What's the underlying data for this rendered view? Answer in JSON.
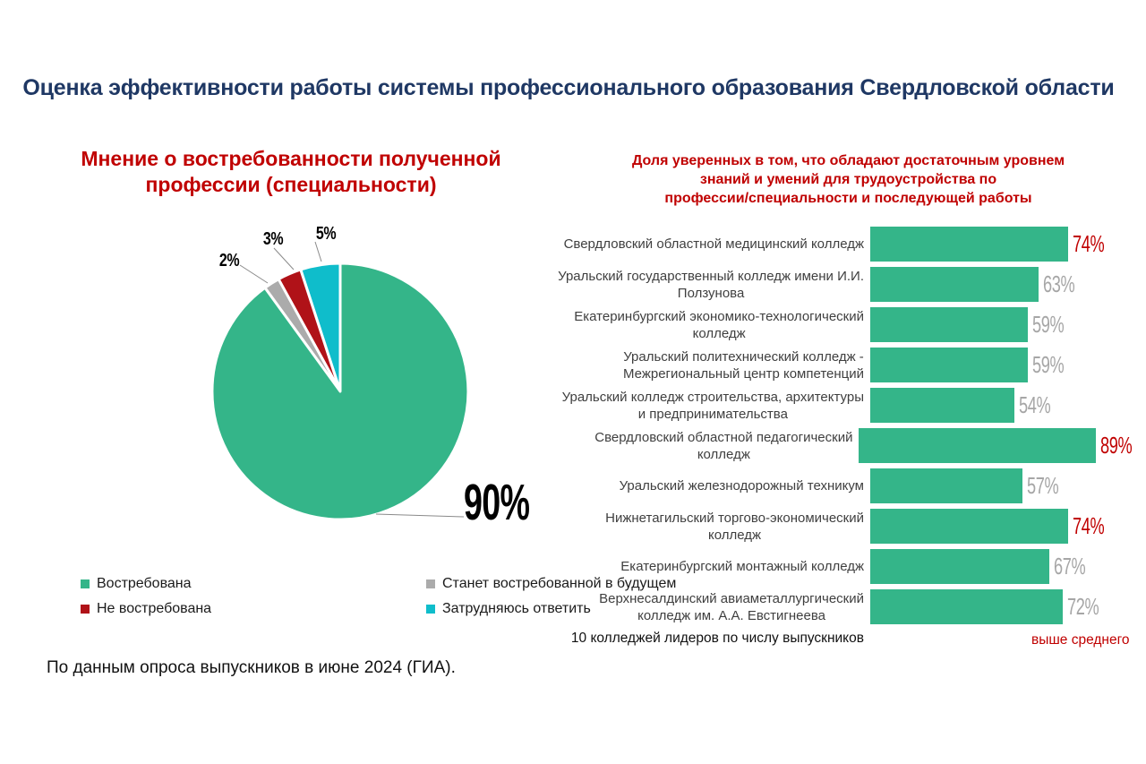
{
  "page": {
    "title": "Оценка эффективности работы системы профессионального образования Свердловской области",
    "footnote": "По данным опроса выпускников в июне 2024 (ГИА)."
  },
  "colors": {
    "title_navy": "#1F3864",
    "accent_red": "#C00000",
    "bar_green": "#34B589",
    "slice_gray": "#ABABAB",
    "slice_red": "#B01218",
    "slice_cyan": "#0FBDCB",
    "value_gray": "#A6A6A6"
  },
  "pie": {
    "title_lines": [
      "Мнение о востребованности полученной",
      "профессии (специальности)"
    ]
  },
  "bar": {
    "title_lines": [
      "Доля уверенных в том, что обладают достаточным уровнем",
      "знаний и умений для трудоустройства по",
      "профессии/специальности и последующей работы"
    ],
    "note_left": "10 колледжей лидеров по числу выпускников",
    "note_right": "выше среднего"
  },
  "chart_data": [
    {
      "type": "pie",
      "title": "Мнение о востребованности полученной профессии (специальности)",
      "start_angle_deg": 0,
      "direction": "clockwise",
      "legend_position": "bottom",
      "slices": [
        {
          "label": "Востребована",
          "value": 90,
          "value_label": "90%",
          "color": "#34B589"
        },
        {
          "label": "Станет востребованной в будущем",
          "value": 2,
          "value_label": "2%",
          "color": "#ABABAB"
        },
        {
          "label": "Не востребована",
          "value": 3,
          "value_label": "3%",
          "color": "#B01218"
        },
        {
          "label": "Затрудняюсь ответить",
          "value": 5,
          "value_label": "5%",
          "color": "#0FBDCB"
        }
      ]
    },
    {
      "type": "bar",
      "orientation": "horizontal",
      "title": "Доля уверенных в том, что обладают достаточным уровнем знаний и умений для трудоустройства по профессии/специальности и последующей работы",
      "xlim": [
        0,
        100
      ],
      "bar_color": "#34B589",
      "grid": false,
      "categories": [
        "Свердловский областной медицинский колледж",
        "Уральский государственный колледж имени И.И. Ползунова",
        "Екатеринбургский экономико-технологический колледж",
        "Уральский политехнический колледж - Межрегиональный центр компетенций",
        "Уральский колледж строительства, архитектуры и предпринимательства",
        "Свердловский областной педагогический колледж",
        "Уральский железнодорожный техникум",
        "Нижнетагильский торгово-экономический колледж",
        "Екатеринбургский монтажный колледж",
        "Верхнесалдинский авиаметаллургический колледж им. А.А. Евстигнеева"
      ],
      "category_lines": [
        [
          "Свердловский областной медицинский колледж"
        ],
        [
          "Уральский государственный колледж имени И.И.",
          "Ползунова"
        ],
        [
          "Екатеринбургский экономико-технологический",
          "колледж"
        ],
        [
          "Уральский политехнический колледж -",
          "Межрегиональный центр компетенций"
        ],
        [
          "Уральский колледж строительства, архитектуры",
          "и предпринимательства"
        ],
        [
          "Свердловский областной педагогический",
          "колледж"
        ],
        [
          "Уральский железнодорожный техникум"
        ],
        [
          "Нижнетагильский торгово-экономический",
          "колледж"
        ],
        [
          "Екатеринбургский монтажный колледж"
        ],
        [
          "Верхнесалдинский авиаметаллургический",
          "колледж им. А.А. Евстигнеева"
        ]
      ],
      "values": [
        74,
        63,
        59,
        59,
        54,
        89,
        57,
        74,
        67,
        72
      ],
      "value_labels": [
        "74%",
        "63%",
        "59%",
        "59%",
        "54%",
        "89%",
        "57%",
        "74%",
        "67%",
        "72%"
      ],
      "highlighted": [
        true,
        false,
        false,
        false,
        false,
        true,
        false,
        true,
        false,
        false
      ],
      "note": "10 колледжей лидеров по числу выпускников",
      "annotation": "выше среднего"
    }
  ]
}
